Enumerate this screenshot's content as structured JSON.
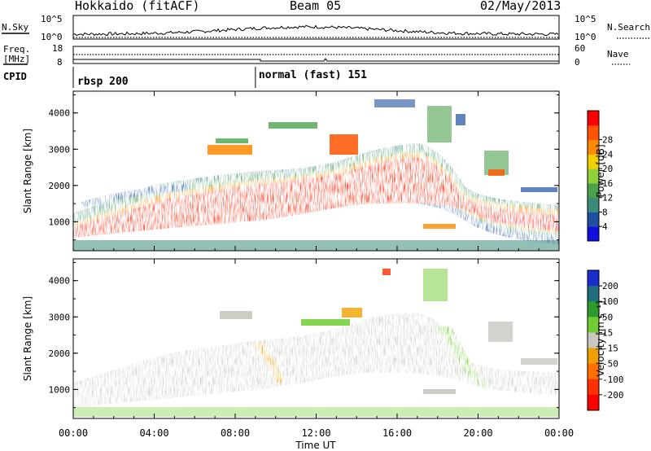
{
  "header": {
    "station": "Hokkaido (fitACF)",
    "beam": "Beam 05",
    "date": "02/May/2013"
  },
  "noise_panel": {
    "left_label": "N.Sky",
    "right_label": "N.Search",
    "ticks_left": [
      "10^5",
      "10^0"
    ],
    "ticks_right": [
      "10^5",
      "10^0"
    ]
  },
  "freq_panel": {
    "left_label_top": "Freq.",
    "left_label_unit": "[MHz]",
    "ticks_left": [
      "18",
      "8"
    ],
    "right_label": "Nave",
    "ticks_right": [
      "60",
      "0"
    ]
  },
  "cpid_panel": {
    "label": "CPID",
    "modes": [
      {
        "name": "rbsp 200",
        "start_hour": 0
      },
      {
        "name": "normal (fast) 151",
        "start_hour": 9
      }
    ]
  },
  "chart_data": [
    {
      "type": "heatmap",
      "name": "power",
      "ylabel": "Slant Range [km]",
      "xlabel": "",
      "xlim": [
        0,
        24
      ],
      "ylim": [
        200,
        4600
      ],
      "yticks": [
        "1000",
        "2000",
        "3000",
        "4000"
      ],
      "colorbar": {
        "label": "Power [dB]",
        "ticks": [
          "4",
          "8",
          "12",
          "16",
          "20",
          "24",
          "28"
        ],
        "colors": [
          "#1010e0",
          "#1f4f9f",
          "#3c8a7a",
          "#4ca24c",
          "#8fd03a",
          "#f0d000",
          "#ff8a00",
          "#ff5500",
          "#ff0000"
        ]
      }
    },
    {
      "type": "heatmap",
      "name": "velocity",
      "ylabel": "Slant Range [km]",
      "xlabel": "Time UT",
      "xlim": [
        0,
        24
      ],
      "ylim": [
        200,
        4600
      ],
      "yticks": [
        "1000",
        "2000",
        "3000",
        "4000"
      ],
      "xticks": [
        "00:00",
        "04:00",
        "08:00",
        "12:00",
        "16:00",
        "20:00",
        "00:00"
      ],
      "colorbar": {
        "label": "Velocity [m s⁻¹]",
        "ticks": [
          "200",
          "100",
          "50",
          "15",
          "-15",
          "-50",
          "-100",
          "-200"
        ],
        "colors": [
          "#1a2ed0",
          "#1f6e80",
          "#2c9a2c",
          "#70cc30",
          "#c8c8c0",
          "#f0a000",
          "#ff7000",
          "#ff3000",
          "#ff0000"
        ]
      }
    }
  ]
}
